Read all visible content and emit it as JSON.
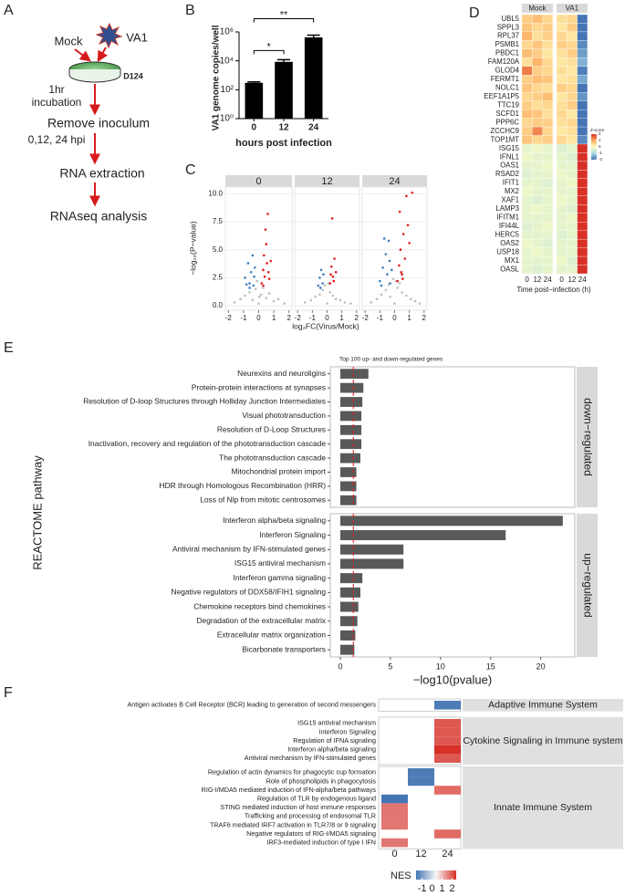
{
  "diagram": {
    "panel": "A",
    "inputs": [
      "Mock",
      "VA1"
    ],
    "cell_line": "D124",
    "incubation": [
      "1hr",
      "incubation"
    ],
    "timepoints": "0,12, 24 hpi",
    "steps": [
      "Remove inoculum",
      "RNA extraction",
      "RNAseq analysis"
    ]
  },
  "chart_data": [
    {
      "type": "bar",
      "panel": "B",
      "categories": [
        "0",
        "12",
        "24"
      ],
      "values": [
        300,
        8500,
        420000
      ],
      "errors": [
        50,
        3500,
        180000
      ],
      "color": "#000000",
      "log": true,
      "ylim": [
        1,
        1000000
      ],
      "yticks": [
        {
          "value": 1,
          "label": "10⁰"
        },
        {
          "value": 100,
          "label": "10²"
        },
        {
          "value": 10000,
          "label": "10⁴"
        },
        {
          "value": 1000000,
          "label": "10⁶"
        }
      ],
      "xlabel": "hours post infection",
      "ylabel": "VA1 genome copies/well",
      "annotations": [
        {
          "text": "*",
          "categories": [
            "0",
            "12"
          ]
        },
        {
          "text": "**",
          "categories": [
            "0",
            "24"
          ]
        }
      ]
    },
    {
      "type": "scatter",
      "panel": "C",
      "xlabel": "log₂FC(Virus/Mock)",
      "ylabel": "−log₁₀(P−value)",
      "xlim": [
        -2.2,
        2.2
      ],
      "xticks": [
        -2,
        -1,
        0,
        1,
        2
      ],
      "ylim": [
        -0.4,
        10.6
      ],
      "yticks": [
        {
          "value": 0,
          "label": "0.0"
        },
        2.5,
        {
          "value": 5,
          "label": "5.0"
        },
        7.5,
        {
          "value": 10,
          "label": "10.0"
        }
      ],
      "facets": [
        {
          "name": "0",
          "series": [
            {
              "color": "#bdbdbd",
              "x": [
                -1.6,
                -1.2,
                -0.9,
                -0.6,
                -0.4,
                -0.2,
                0,
                0.15,
                0.3,
                0.5,
                0.7,
                1.0,
                1.3,
                1.7,
                -0.1,
                0.05
              ],
              "y": [
                0.3,
                0.6,
                0.9,
                1.2,
                0.5,
                1.5,
                0.2,
                1.0,
                1.6,
                0.7,
                1.1,
                0.4,
                0.6,
                0.2,
                2.2,
                0.8
              ]
            },
            {
              "color": "#3a7dc1",
              "x": [
                -0.9,
                -0.7,
                -0.6,
                -0.5,
                -0.4,
                -0.35,
                -0.3,
                -0.25,
                -0.6,
                -0.8
              ],
              "y": [
                2.5,
                3.8,
                2.0,
                3.0,
                4.5,
                1.8,
                2.6,
                3.4,
                1.6,
                1.9
              ]
            },
            {
              "color": "#e41a1c",
              "x": [
                0.2,
                0.3,
                0.35,
                0.4,
                0.5,
                0.55,
                0.6,
                0.7,
                0.8,
                0.45,
                0.3,
                0.65
              ],
              "y": [
                2.0,
                3.2,
                4.5,
                2.6,
                5.5,
                3.8,
                8.2,
                2.4,
                4.0,
                6.8,
                1.8,
                3.0
              ]
            }
          ]
        },
        {
          "name": "12",
          "series": [
            {
              "color": "#bdbdbd",
              "x": [
                -1.5,
                -1.1,
                -0.8,
                -0.5,
                -0.3,
                0,
                0.2,
                0.4,
                0.6,
                0.9,
                1.2,
                1.6,
                -0.15,
                0.1
              ],
              "y": [
                0.3,
                0.5,
                0.8,
                1.0,
                1.4,
                0.2,
                1.2,
                0.9,
                0.6,
                0.5,
                0.3,
                0.2,
                1.8,
                2.0
              ]
            },
            {
              "color": "#3a7dc1",
              "x": [
                -0.6,
                -0.5,
                -0.4,
                -0.3,
                -0.25,
                -0.45
              ],
              "y": [
                1.8,
                2.5,
                3.2,
                2.0,
                2.8,
                1.6
              ]
            },
            {
              "color": "#e41a1c",
              "x": [
                0.2,
                0.3,
                0.4,
                0.5,
                0.6,
                0.35,
                0.45,
                0.25
              ],
              "y": [
                2.0,
                3.5,
                2.6,
                4.2,
                3.0,
                7.8,
                2.2,
                2.8
              ]
            }
          ]
        },
        {
          "name": "24",
          "series": [
            {
              "color": "#bdbdbd",
              "x": [
                -1.6,
                -1.2,
                -0.9,
                -0.6,
                -0.3,
                0,
                0.2,
                0.5,
                0.8,
                1.1,
                1.4,
                1.7,
                -0.1,
                0.1,
                -0.4,
                0.35
              ],
              "y": [
                0.3,
                0.6,
                1.0,
                1.4,
                0.8,
                0.2,
                1.6,
                1.2,
                0.9,
                0.6,
                0.4,
                0.2,
                2.4,
                2.2,
                1.9,
                2.0
              ]
            },
            {
              "color": "#3a7dc1",
              "x": [
                -1.0,
                -0.8,
                -0.6,
                -0.5,
                -0.4,
                -0.3,
                -0.7,
                -0.2,
                -0.9,
                -0.35
              ],
              "y": [
                2.2,
                3.4,
                4.6,
                2.8,
                5.8,
                2.0,
                6.0,
                3.2,
                1.8,
                4.0
              ]
            },
            {
              "color": "#e41a1c",
              "x": [
                0.2,
                0.3,
                0.4,
                0.5,
                0.6,
                0.7,
                0.8,
                1.0,
                1.2,
                0.45,
                0.9,
                0.35,
                0.55
              ],
              "y": [
                2.2,
                3.6,
                5.0,
                2.8,
                6.4,
                4.2,
                9.8,
                5.6,
                10.1,
                3.0,
                7.2,
                8.4,
                2.4
              ]
            }
          ]
        }
      ]
    },
    {
      "type": "heatmap",
      "panel": "D",
      "column_groups": [
        "Mock",
        "VA1"
      ],
      "columns": [
        "0",
        "12",
        "24"
      ],
      "xlabel": "Time post−infection (h)",
      "legend_title": "Z-score",
      "clim": [
        -2,
        2
      ],
      "cticks": [
        2,
        1,
        0,
        -1,
        -2
      ],
      "colorscale": [
        "#4575b4",
        "#abd9e9",
        "#ffffbf",
        "#fdae61",
        "#d73027"
      ],
      "rows": [
        "UBL5",
        "SPPL3",
        "RPL37",
        "PSMB1",
        "PBDC1",
        "FAM120A",
        "GLOD4",
        "FERMT1",
        "NOLC1",
        "EEF1A1P5",
        "TTC19",
        "SCFD1",
        "PPP6C",
        "ZCCHC9",
        "TOP1MT",
        "ISG15",
        "IFNL1",
        "OAS1",
        "RSAD2",
        "IFIT1",
        "MX2",
        "XAF1",
        "LAMP3",
        "IFITM1",
        "IFI44L",
        "HERC5",
        "OAS2",
        "USP18",
        "MX1",
        "OASL"
      ],
      "values": [
        [
          0.6,
          0.8,
          0.5,
          0.4,
          0.5,
          -2.2
        ],
        [
          0.7,
          0.5,
          0.6,
          0.3,
          0.6,
          -2.0
        ],
        [
          0.9,
          0.4,
          0.6,
          0.5,
          0.3,
          -2.3
        ],
        [
          0.5,
          0.7,
          0.4,
          0.6,
          0.5,
          -1.8
        ],
        [
          0.8,
          0.6,
          0.3,
          0.4,
          0.6,
          -1.6
        ],
        [
          0.4,
          0.9,
          0.5,
          0.3,
          0.4,
          -1.4
        ],
        [
          1.4,
          0.6,
          0.5,
          0.4,
          0.3,
          -1.9
        ],
        [
          0.6,
          0.8,
          0.7,
          0.3,
          0.4,
          -1.5
        ],
        [
          0.7,
          0.5,
          0.4,
          0.6,
          0.5,
          -2.1
        ],
        [
          0.5,
          0.6,
          0.8,
          0.3,
          0.5,
          -1.7
        ],
        [
          0.6,
          0.4,
          0.5,
          0.4,
          0.6,
          -2.2
        ],
        [
          0.8,
          0.7,
          0.4,
          0.5,
          0.3,
          -2.0
        ],
        [
          0.5,
          0.6,
          0.6,
          0.4,
          0.5,
          -2.4
        ],
        [
          0.6,
          1.3,
          0.5,
          0.3,
          0.4,
          -2.0
        ],
        [
          0.7,
          0.5,
          0.6,
          0.5,
          0.3,
          -1.8
        ],
        [
          -0.3,
          -0.2,
          -0.3,
          -0.4,
          -0.3,
          3.5
        ],
        [
          -0.2,
          -0.3,
          -0.3,
          -0.3,
          -0.4,
          3.5
        ],
        [
          -0.3,
          -0.3,
          -0.2,
          -0.3,
          -0.3,
          3.5
        ],
        [
          -0.4,
          -0.3,
          -0.3,
          -0.2,
          -0.3,
          3.5
        ],
        [
          -0.3,
          -0.3,
          -0.4,
          -0.3,
          -0.2,
          3.5
        ],
        [
          -0.2,
          -0.3,
          -0.3,
          -0.3,
          -0.3,
          3.5
        ],
        [
          -0.3,
          -0.4,
          -0.3,
          -0.2,
          -0.3,
          3.5
        ],
        [
          -0.3,
          -0.2,
          -0.3,
          -0.3,
          -0.4,
          3.5
        ],
        [
          -0.3,
          -0.3,
          -0.3,
          -0.3,
          -0.2,
          3.5
        ],
        [
          -0.4,
          -0.3,
          -0.2,
          -0.3,
          -0.3,
          3.5
        ],
        [
          -0.3,
          -0.3,
          -0.3,
          -0.4,
          -0.3,
          3.5
        ],
        [
          -0.2,
          -0.3,
          -0.4,
          -0.3,
          -0.3,
          3.5
        ],
        [
          -0.3,
          -0.2,
          -0.3,
          -0.3,
          -0.3,
          3.5
        ],
        [
          -0.3,
          -0.3,
          -0.3,
          -0.2,
          -0.4,
          3.5
        ],
        [
          -0.3,
          -0.4,
          -0.3,
          -0.3,
          -0.3,
          3.5
        ]
      ]
    },
    {
      "type": "bar",
      "panel": "E",
      "horizontal": true,
      "title": "Top 100 up- and down-regulated genes",
      "xlabel": "−log10(pvalue)",
      "ylabel": "REACTOME pathway",
      "color": "#595959",
      "threshold": 1.3,
      "threshold_color": "#e41a1c",
      "xlim": [
        -1,
        23.4
      ],
      "xticks": [
        0,
        5,
        10,
        15,
        20
      ],
      "facets": [
        {
          "name": "down−regulated",
          "categories": [
            "Neurexins and neuroligins",
            "Protein-protein interactions at synapses",
            "Resolution of D-loop Structures through Holliday Junction Intermediates",
            "Visual phototransduction",
            "Resolution of D-Loop Structures",
            "Inactivation, recovery and regulation of the phototransduction cascade",
            "The phototransduction cascade",
            "Mitochondrial protein import",
            "HDR through Homologous Recombination (HRR)",
            "Loss of Nlp from mitotic centrosomes"
          ],
          "values": [
            2.8,
            2.3,
            2.2,
            2.1,
            2.1,
            2.1,
            2.0,
            1.6,
            1.6,
            1.6
          ]
        },
        {
          "name": "up−regulated",
          "categories": [
            "Interferon alpha/beta signaling",
            "Interferon Signaling",
            "Antiviral mechanism by IFN-stimulated genes",
            "ISG15 antiviral mechanism",
            "Interferon gamma signaling",
            "Negative regulators of DDX58/IFIH1 signaling",
            "Chemokine receptors bind chemokines",
            "Degradation of the extracellular matrix",
            "Extracellular matrix organization",
            "Bicarbonate transporters"
          ],
          "values": [
            22.2,
            16.5,
            6.3,
            6.3,
            2.2,
            2.0,
            1.8,
            1.7,
            1.5,
            1.4
          ]
        }
      ]
    },
    {
      "type": "heatmap",
      "panel": "F",
      "columns": [
        "0",
        "12",
        "24"
      ],
      "legend_title": "NES",
      "clim": [
        -1.6,
        2.4
      ],
      "cticks": [
        -1,
        0,
        1,
        2
      ],
      "colorscale": [
        "#4575b4",
        "#f7f7f7",
        "#d73027"
      ],
      "row_groups": [
        {
          "name": "Adaptive Immune System",
          "rows": [
            "Antigen activates B Cell Receptor (BCR) leading to generation of second messengers"
          ],
          "values": [
            [
              null,
              null,
              -1.5
            ]
          ]
        },
        {
          "name": "Cytokine Signaling in Immune system",
          "rows": [
            "ISG15 antiviral mechanism",
            "Interferon Signaling",
            "Regulation of IFNA signaling",
            "Interferon alpha/beta signaling",
            "Antiviral mechanism by IFN-stimulated genes"
          ],
          "values": [
            [
              null,
              null,
              2.0
            ],
            [
              null,
              null,
              2.0
            ],
            [
              null,
              null,
              2.0
            ],
            [
              null,
              null,
              2.4
            ],
            [
              null,
              null,
              2.0
            ]
          ]
        },
        {
          "name": "Innate Immune System",
          "rows": [
            "Regulation of actin dynamics for phagocytic cup formation",
            "Role of phospholipids in phagocytosis",
            "RIG-I/MDA5 mediated induction of IFN-alpha/beta pathways",
            "Regulation of TLR by endogenous ligand",
            "STING mediated induction of host immune responses",
            "Trafficking and processing of endosomal TLR",
            "TRAF6 mediated IRF7 activation in TLR7/8 or 9 signaling",
            "Negative regulators of RIG-I/MDA5 signaling",
            "IRF3-mediated induction of type I IFN"
          ],
          "values": [
            [
              null,
              -1.5,
              null
            ],
            [
              null,
              -1.5,
              null
            ],
            [
              null,
              null,
              1.8
            ],
            [
              -1.6,
              null,
              null
            ],
            [
              1.7,
              null,
              null
            ],
            [
              1.7,
              null,
              null
            ],
            [
              1.7,
              null,
              null
            ],
            [
              null,
              null,
              1.8
            ],
            [
              1.7,
              null,
              null
            ]
          ]
        }
      ]
    }
  ]
}
